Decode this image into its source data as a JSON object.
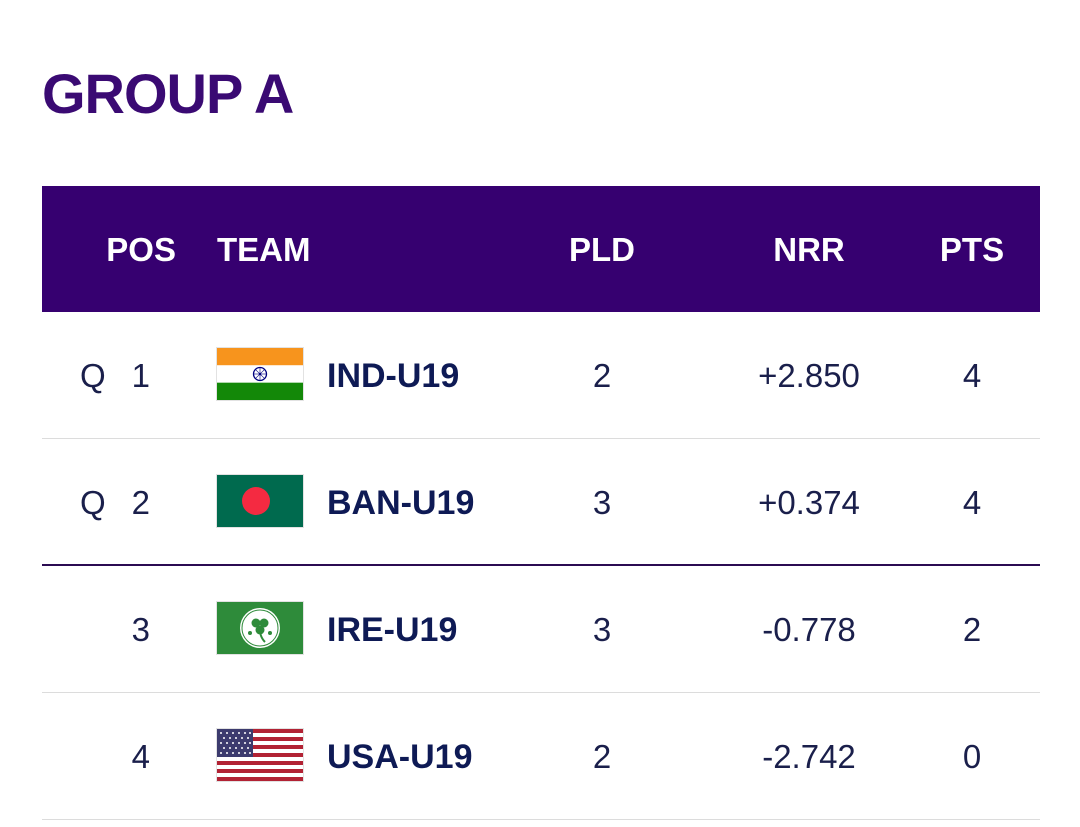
{
  "group": {
    "title": "GROUP A"
  },
  "table": {
    "headers": {
      "pos": "POS",
      "team": "TEAM",
      "pld": "PLD",
      "nrr": "NRR",
      "pts": "PTS"
    },
    "rows": [
      {
        "qualified": "Q",
        "pos": "1",
        "team": "IND-U19",
        "flag": "india-flag-icon",
        "pld": "2",
        "nrr": "+2.850",
        "pts": "4"
      },
      {
        "qualified": "Q",
        "pos": "2",
        "team": "BAN-U19",
        "flag": "bangladesh-flag-icon",
        "pld": "3",
        "nrr": "+0.374",
        "pts": "4"
      },
      {
        "qualified": "",
        "pos": "3",
        "team": "IRE-U19",
        "flag": "ireland-cricket-flag-icon",
        "pld": "3",
        "nrr": "-0.778",
        "pts": "2"
      },
      {
        "qualified": "",
        "pos": "4",
        "team": "USA-U19",
        "flag": "usa-flag-icon",
        "pld": "2",
        "nrr": "-2.742",
        "pts": "0"
      }
    ]
  },
  "colors": {
    "title": "#3a0a73",
    "header_bg": "#360070",
    "header_text": "#ffffff",
    "team_text": "#0e1a55"
  }
}
